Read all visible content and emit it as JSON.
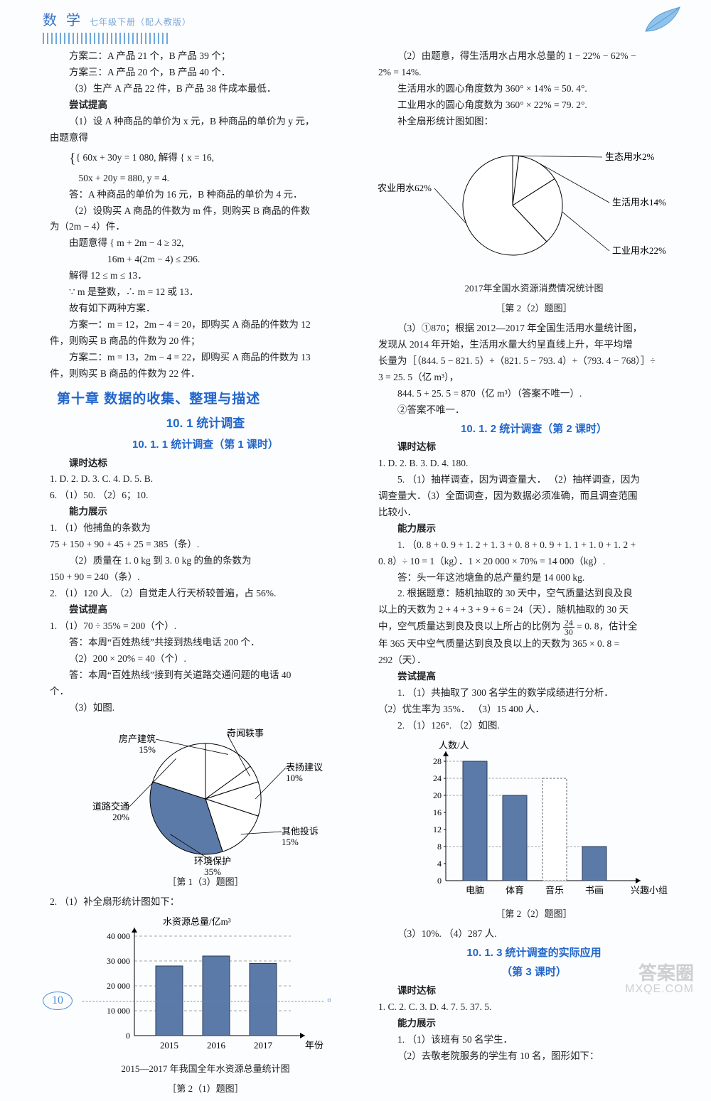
{
  "header": {
    "subject": "数 学",
    "grade": "七年级下册（配人教版）"
  },
  "left": {
    "pre": [
      "方案二：A 产品 21 个，B 产品 39 个；",
      "方案三：A 产品 20 个，B 产品 40 个．",
      "（3）生产 A 产品 22 件，B 产品 38 件成本最低．",
      "尝试提高",
      "（1）设 A 种商品的单价为 x 元，B 种商品的单价为 y 元，",
      "由题意得",
      "{ 60x + 30y = 1 080,   解得 { x = 16,",
      "  50x + 20y = 880,            y = 4.",
      "答：A 种商品的单价为 16 元，B 种商品的单价为 4 元．",
      "（2）设购买 A 商品的件数为 m 件，则购买 B 商品的件数",
      "为（2m − 4）件．",
      "由题意得 { m + 2m − 4 ≥ 32,",
      "            16m + 4(2m − 4) ≤ 296.",
      "解得 12 ≤ m ≤ 13．",
      "∵ m 是整数，∴ m = 12 或 13．",
      "故有如下两种方案．",
      "方案一：m = 12，2m − 4 = 20，即购买 A 商品的件数为 12",
      "件，则购买 B 商品的件数为 20 件；",
      "方案二：m = 13，2m − 4 = 22，即购买 A 商品的件数为 13",
      "件，则购买 B 商品的件数为 22 件．"
    ],
    "chapter_title": "第十章  数据的收集、整理与描述",
    "section_title": "10. 1  统计调查",
    "subsection_title": "10. 1. 1  统计调查（第 1 课时）",
    "keshi_label": "课时达标",
    "keshi_answers": "1.  D.    2.  D.    3.  C.    4.  D.    5.  B.",
    "keshi_line2": "6. （1）50.    （2）6；10.",
    "nengli_label": "能力展示",
    "nengli_lines": [
      "1. （1）他捕鱼的条数为",
      "75 + 150 + 90 + 45 + 25 = 385（条）.",
      "（2）质量在 1. 0 kg 到 3. 0 kg 的鱼的条数为",
      "150 + 90 = 240（条）.",
      "2. （1）120 人.    （2）自觉走人行天桥较普遍，占 56%."
    ],
    "changshi_label": "尝试提高",
    "changshi_lines": [
      "1. （1）70 ÷ 35% = 200（个）.",
      "答：本周“百姓热线”共接到热线电话 200 个．",
      "（2）200 × 20% = 40（个）.",
      "答：本周“百姓热线”接到有关道路交通问题的电话 40",
      "个．",
      "（3）如图."
    ],
    "pie1": {
      "type": "pie",
      "labels": [
        "房产建筑",
        "奇闻轶事",
        "表扬建议",
        "其他投诉",
        "环境保护",
        "道路交通"
      ],
      "percents": [
        15,
        5,
        10,
        15,
        35,
        20
      ],
      "percent_labels": [
        "15%",
        "",
        "10%",
        "15%",
        "35%",
        "20%"
      ],
      "colors": [
        "#ffffff",
        "#ffffff",
        "#ffffff",
        "#ffffff",
        "#5b7aa8",
        "#ffffff"
      ],
      "stroke": "#000000",
      "label_fontsize": 13,
      "caption": "［第 1（3）题图］"
    },
    "bar1_intro": "2. （1）补全扇形统计图如下：",
    "bar1": {
      "type": "bar",
      "ylabel": "水资源总量/亿m³",
      "xlabel": "年份",
      "categories": [
        "2015",
        "2016",
        "2017"
      ],
      "values": [
        28000,
        32000,
        29000
      ],
      "ylim": [
        0,
        40000
      ],
      "ytick_step": 10000,
      "yticks": [
        "0",
        "10 000",
        "20 000",
        "30 000",
        "40 000"
      ],
      "bar_color": "#5b7aa8",
      "dashed_color": "#888888",
      "axis_color": "#000000",
      "caption1": "2015—2017 年我国全年水资源总量统计图",
      "caption2": "［第 2（1）题图］"
    }
  },
  "right": {
    "top_lines": [
      "（2）由题意，得生活用水占用水总量的 1 − 22% − 62% −",
      "2% = 14%.",
      "生活用水的圆心角度数为 360° × 14% = 50. 4°.",
      "工业用水的圆心角度数为 360° × 22% = 79. 2°.",
      "补全扇形统计图如图："
    ],
    "pie2": {
      "type": "pie",
      "labels": [
        "生态用水2%",
        "生活用水14%",
        "工业用水22%",
        "农业用水62%"
      ],
      "percents": [
        2,
        14,
        22,
        62
      ],
      "colors": [
        "#ffffff",
        "#ffffff",
        "#ffffff",
        "#ffffff"
      ],
      "stroke": "#000000",
      "caption1": "2017年全国水资源消费情况统计图",
      "caption2": "［第 2（2）题图］"
    },
    "p3_lines": [
      "（3）①870；根据 2012—2017 年全国生活用水量统计图，",
      "发现从 2014 年开始，生活用水量大约呈直线上升，年平均增",
      "长量为［（844. 5 − 821. 5）+（821. 5 − 793. 4）+（793. 4 − 768）］÷",
      "3 = 25. 5（亿 m³），",
      "844. 5 + 25. 5 = 870（亿 m³）（答案不唯一）.",
      "②答案不唯一．"
    ],
    "sub2_title": "10. 1. 2  统计调查（第 2 课时）",
    "sub2_keshi_label": "课时达标",
    "sub2_keshi": "1.  D.    2.  B.    3.  D.    4.  180.",
    "sub2_lines": [
      "5. （1）抽样调查，因为调查量大． （2）抽样调查，因为",
      "调查量大．（3）全面调查，因为数据必须准确，而且调查范围",
      "比较小．"
    ],
    "sub2_nengli_label": "能力展示",
    "sub2_nengli_lines": [
      "1. （0. 8 + 0. 9 + 1. 2 + 1. 3 + 0. 8 + 0. 9 + 1. 1 + 1. 0 + 1. 2 +",
      "0. 8）÷ 10 = 1（kg）．1 × 20 000 × 70% = 14 000（kg）.",
      "答：头一年这池塘鱼的总产量约是 14 000 kg.",
      "2. 根据题意：随机抽取的 30 天中，空气质量达到良及良",
      "以上的天数为 2 + 4 + 3 + 9 + 6 = 24（天）．随机抽取的 30 天"
    ],
    "sub2_frac_line_a": "中，空气质量达到良及良以上所占的比例为",
    "sub2_frac_num": "24",
    "sub2_frac_den": "30",
    "sub2_frac_line_b": " = 0. 8，估计全",
    "sub2_after_frac": [
      "年 365 天中空气质量达到良及良以上的天数为 365 × 0. 8 =",
      "292（天）．"
    ],
    "sub2_changshi_label": "尝试提高",
    "sub2_changshi_lines": [
      "1. （1）共抽取了 300 名学生的数学成绩进行分析．",
      "（2）优生率为 35%．   （3）15 400 人．",
      "2. （1）126°.    （2）如图."
    ],
    "bar2": {
      "type": "bar",
      "ylabel": "人数/人",
      "categories": [
        "电脑",
        "体育",
        "音乐",
        "书画"
      ],
      "values": [
        28,
        20,
        24,
        8
      ],
      "highlight_index": 2,
      "ylim": [
        0,
        28
      ],
      "ytick_step": 4,
      "yticks": [
        "0",
        "4",
        "8",
        "12",
        "16",
        "20",
        "24",
        "28"
      ],
      "bar_color": "#5b7aa8",
      "highlight_color": "#ffffff",
      "highlight_stroke": "#666666",
      "axis_color": "#000000",
      "x_extra_label": "兴趣小组",
      "caption": "［第 2（2）题图］"
    },
    "after_bar2": "（3）10%.    （4）287 人.",
    "sub3_title1": "10. 1. 3  统计调查的实际应用",
    "sub3_title2": "（第 3 课时）",
    "sub3_keshi_label": "课时达标",
    "sub3_keshi": "1.  C.    2.  C.    3.  D.    4.  7.    5.  37. 5.",
    "sub3_nengli_label": "能力展示",
    "sub3_nengli_lines": [
      "1. （1）该班有 50 名学生．",
      "（2）去敬老院服务的学生有 10 名，图形如下："
    ]
  },
  "footer": {
    "page": "10"
  },
  "watermark": {
    "main": "答案圈",
    "site": "MXQE.COM"
  }
}
